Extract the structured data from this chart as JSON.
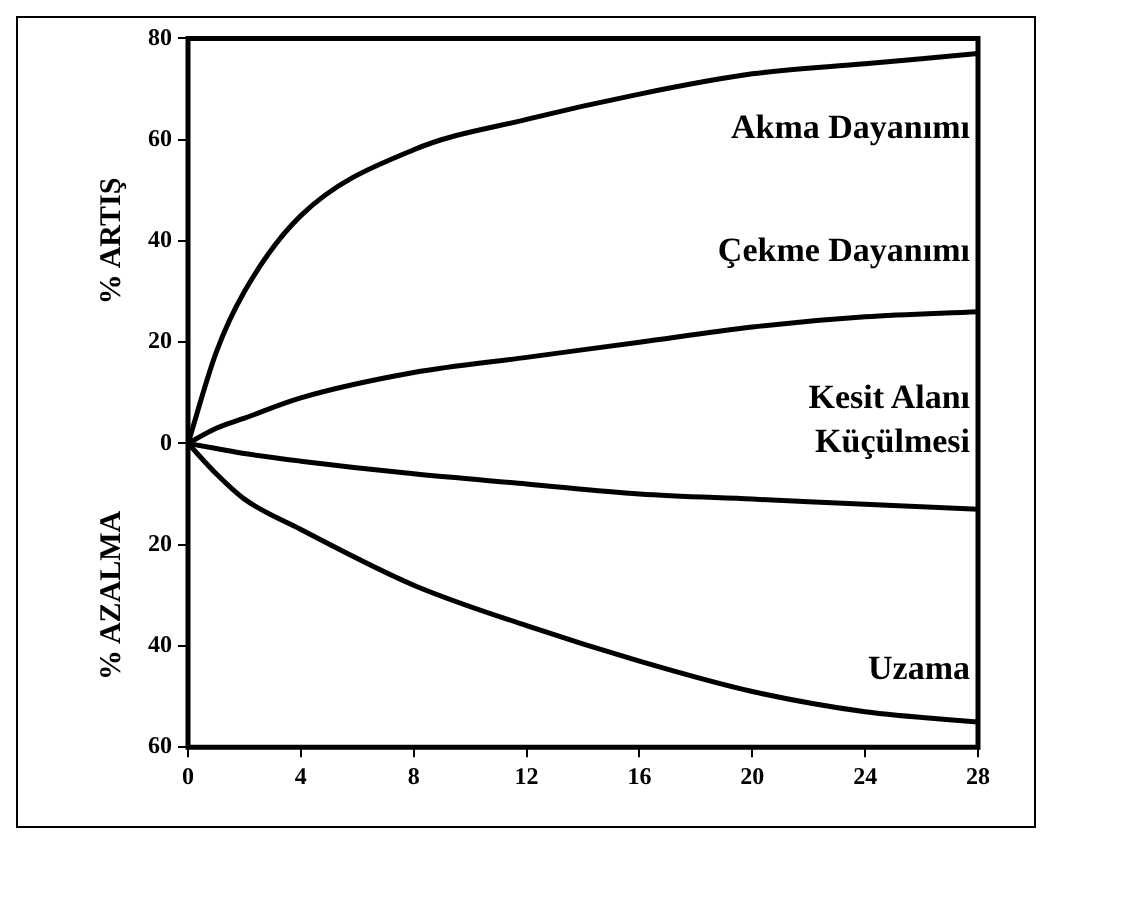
{
  "chart_data": {
    "type": "line",
    "ylabel": "% ARTIŞ",
    "annotations": [
      "% AZALMA"
    ],
    "x": [
      0,
      1,
      2,
      4,
      8,
      12,
      16,
      20,
      24,
      28
    ],
    "series": [
      {
        "name": "Akma Dayanımı",
        "color": "#000000",
        "values": [
          0,
          18,
          30,
          45,
          58,
          64,
          69,
          73,
          75,
          77
        ]
      },
      {
        "name": "Çekme Dayanımı",
        "color": "#000000",
        "values": [
          0,
          3,
          5,
          9,
          14,
          17,
          20,
          23,
          25,
          26
        ]
      },
      {
        "name": "Kesit Alanı Küçülmesi",
        "color": "#000000",
        "values": [
          0,
          -1,
          -2,
          -3.5,
          -6,
          -8,
          -10,
          -11,
          -12,
          -13
        ]
      },
      {
        "name": "Uzama",
        "color": "#000000",
        "values": [
          0,
          -6,
          -11,
          -17,
          -28,
          -36,
          -43,
          -49,
          -53,
          -55
        ]
      }
    ],
    "xlim": [
      0,
      28
    ],
    "xticks": [
      0,
      4,
      8,
      12,
      16,
      20,
      24,
      28
    ],
    "ylim": [
      -60,
      80
    ],
    "yticks": [
      80,
      60,
      40,
      20,
      0,
      {
        "value": -20,
        "label": "20"
      },
      {
        "value": -40,
        "label": "40"
      },
      {
        "value": -60,
        "label": "60"
      }
    ],
    "grid": false,
    "legend": false,
    "marker": "none",
    "line_style": "solid"
  }
}
